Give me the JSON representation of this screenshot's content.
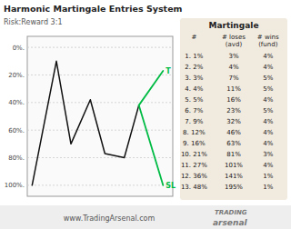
{
  "chart_data": {
    "type": "line",
    "title": "Harmonic Martingale Entries System",
    "subtitle": "Risk:Reward  3:1",
    "series": [
      {
        "x": [
          0,
          2.5,
          4,
          6,
          7.5,
          9.5,
          11
        ],
        "values": [
          100,
          10,
          70,
          38,
          77,
          80,
          42
        ],
        "color": "#111111"
      },
      {
        "x": [
          11,
          13.5
        ],
        "values": [
          42,
          17
        ],
        "color": "#00bb44"
      },
      {
        "x": [
          11,
          13.5
        ],
        "values": [
          42,
          100
        ],
        "color": "#00bb44"
      }
    ],
    "annotations": [
      {
        "text": "T",
        "x": 13.5,
        "y": 17
      },
      {
        "text": "SL",
        "x": 13.5,
        "y": 100
      }
    ],
    "xlim": [
      -0.5,
      14.5
    ],
    "ylim": [
      108,
      -8
    ],
    "yticks": [
      {
        "value": 0,
        "label": "0%."
      },
      {
        "value": 20,
        "label": "20%."
      },
      {
        "value": 40,
        "label": "40%."
      },
      {
        "value": 60,
        "label": "60%."
      },
      {
        "value": 80,
        "label": "80%."
      },
      {
        "value": 100,
        "label": "100%."
      }
    ],
    "grid": true,
    "tick_labels": "y"
  },
  "table": {
    "title": "Martingale",
    "columns": [
      "#",
      "# loses\n(avd)",
      "# wins\n(fund)"
    ],
    "rows": [
      [
        "1. 1%",
        "3%",
        "4%"
      ],
      [
        "2. 2%",
        "4%",
        "4%"
      ],
      [
        "3. 3%",
        "7%",
        "5%"
      ],
      [
        "4. 4%",
        "11%",
        "5%"
      ],
      [
        "5. 5%",
        "16%",
        "4%"
      ],
      [
        "6. 7%",
        "23%",
        "5%"
      ],
      [
        "7. 9%",
        "32%",
        "4%"
      ],
      [
        "8. 12%",
        "46%",
        "4%"
      ],
      [
        "9. 16%",
        "63%",
        "4%"
      ],
      [
        "10. 21%",
        "81%",
        "3%"
      ],
      [
        "11. 27%",
        "101%",
        "4%"
      ],
      [
        "12. 36%",
        "141%",
        "1%"
      ],
      [
        "13. 48%",
        "195%",
        "1%"
      ]
    ]
  },
  "footer": {
    "text": "www.TradingArsenal.com",
    "logo": [
      "TRADING",
      "arsenal"
    ]
  }
}
